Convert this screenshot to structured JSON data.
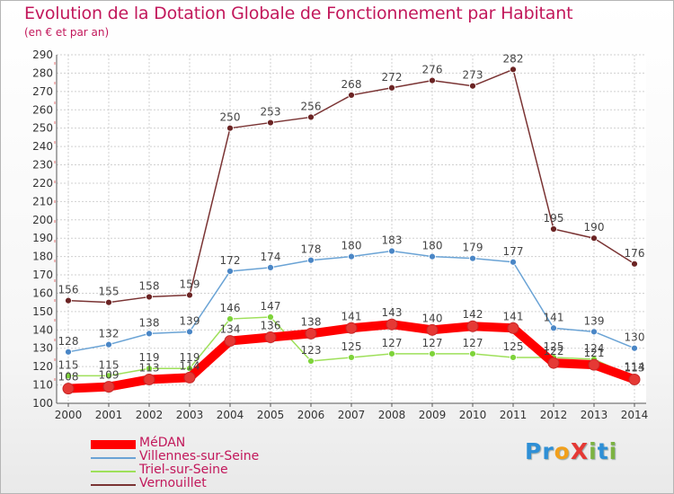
{
  "header": {
    "title": "Evolution de la Dotation Globale de Fonctionnement par Habitant",
    "subtitle": "(en € et par an)"
  },
  "brand": {
    "logo_text": "ProXiti",
    "letters": [
      {
        "ch": "P",
        "color": "#2e8fd6"
      },
      {
        "ch": "r",
        "color": "#2e8fd6"
      },
      {
        "ch": "o",
        "color": "#f2a01c"
      },
      {
        "ch": "X",
        "color": "#e53935"
      },
      {
        "ch": "i",
        "color": "#7cb342"
      },
      {
        "ch": "t",
        "color": "#2e8fd6"
      },
      {
        "ch": "i",
        "color": "#7cb342"
      }
    ]
  },
  "colors": {
    "text_accent": "#c2185b",
    "axis_text": "#333333",
    "grid": "#cccccc"
  },
  "chart_data": {
    "type": "line",
    "title": "Evolution de la Dotation Globale de Fonctionnement par Habitant",
    "subtitle": "(en € et par an)",
    "xlabel": "",
    "ylabel": "",
    "categories": [
      "2000",
      "2001",
      "2002",
      "2003",
      "2004",
      "2005",
      "2006",
      "2007",
      "2008",
      "2009",
      "2010",
      "2011",
      "2012",
      "2013",
      "2014"
    ],
    "ylim": [
      100,
      290
    ],
    "yticks": [
      100,
      110,
      120,
      130,
      140,
      150,
      160,
      170,
      180,
      190,
      200,
      210,
      220,
      230,
      240,
      250,
      260,
      270,
      280,
      290
    ],
    "grid": true,
    "legend_position": "bottom-left",
    "series": [
      {
        "name": "MéDAN",
        "color": "#ff0000",
        "marker": "#e53935",
        "emphasis": true,
        "values": [
          108,
          109,
          113,
          114,
          134,
          136,
          138,
          141,
          143,
          140,
          142,
          141,
          122,
          121,
          113
        ],
        "labels": [
          "108",
          "109",
          "113",
          "114",
          "134",
          "136",
          "138",
          "141",
          "143",
          "140",
          "142",
          "141",
          "122",
          "121",
          "113"
        ]
      },
      {
        "name": "Villennes-sur-Seine",
        "color": "#6aa3d5",
        "marker": "#4a86c6",
        "emphasis": false,
        "values": [
          128,
          132,
          138,
          139,
          172,
          174,
          178,
          180,
          183,
          180,
          179,
          177,
          141,
          139,
          130
        ],
        "labels": [
          "128",
          "132",
          "138",
          "139",
          "172",
          "174",
          "178",
          "180",
          "183",
          "180",
          "179",
          "177",
          "141",
          "139",
          "130"
        ]
      },
      {
        "name": "Triel-sur-Seine",
        "color": "#9ee05a",
        "marker": "#7ed33a",
        "emphasis": false,
        "values": [
          115,
          115,
          119,
          119,
          146,
          147,
          123,
          125,
          127,
          127,
          127,
          125,
          125,
          124,
          114
        ],
        "labels": [
          "115",
          "115",
          "119",
          "119",
          "146",
          "147",
          "123",
          "125",
          "127",
          "127",
          "127",
          "125",
          "125",
          "124",
          "114"
        ]
      },
      {
        "name": "Vernouillet",
        "color": "#7a3333",
        "marker": "#6b2424",
        "emphasis": false,
        "values": [
          156,
          155,
          158,
          159,
          250,
          253,
          256,
          268,
          272,
          276,
          273,
          282,
          195,
          190,
          176
        ],
        "labels": [
          "156",
          "155",
          "158",
          "159",
          "250",
          "253",
          "256",
          "268",
          "272",
          "276",
          "273",
          "282",
          "195",
          "190",
          "176"
        ]
      }
    ]
  }
}
